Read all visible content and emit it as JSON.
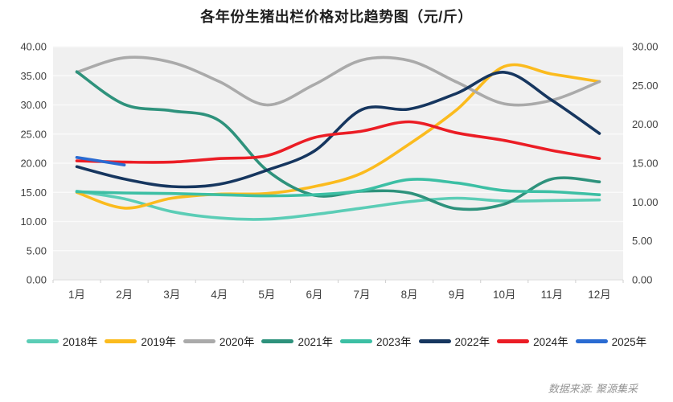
{
  "title": "各年份生猪出栏价格对比趋势图（元/斤）",
  "footer": {
    "source_label": "数据来源: 聚源集采"
  },
  "chart_data": {
    "type": "line",
    "title": "各年份生猪出栏价格对比趋势图（元/斤）",
    "categories": [
      "1月",
      "2月",
      "3月",
      "4月",
      "5月",
      "6月",
      "7月",
      "8月",
      "9月",
      "10月",
      "11月",
      "12月"
    ],
    "left_axis": {
      "min": 0,
      "max": 40,
      "step": 5,
      "labels": [
        "40.00",
        "35.00",
        "30.00",
        "25.00",
        "20.00",
        "15.00",
        "10.00",
        "5.00",
        "0.00"
      ]
    },
    "right_axis": {
      "min": 0,
      "max": 30,
      "step": 5,
      "labels": [
        "30.00",
        "25.00",
        "20.00",
        "15.00",
        "10.00",
        "5.00",
        "0.00"
      ]
    },
    "grid": true,
    "legend_position": "bottom",
    "plot_background": "#f0f0f0",
    "gridline_color": "#fafafa",
    "series": [
      {
        "name": "2018年",
        "color": "#5BCDB6",
        "values": [
          15.2,
          13.9,
          11.7,
          10.6,
          10.4,
          11.2,
          12.3,
          13.4,
          14.0,
          13.5,
          13.6,
          13.7
        ]
      },
      {
        "name": "2019年",
        "color": "#FBBB1E",
        "values": [
          15.0,
          12.3,
          14.0,
          14.7,
          14.8,
          16.0,
          18.3,
          23.3,
          29.2,
          36.6,
          35.3,
          34.0
        ]
      },
      {
        "name": "2020年",
        "color": "#AAAAAA",
        "values": [
          35.6,
          38.1,
          37.3,
          34.0,
          30.0,
          33.5,
          37.7,
          37.6,
          33.9,
          30.2,
          30.8,
          34.0
        ]
      },
      {
        "name": "2021年",
        "color": "#2E927C",
        "values": [
          35.7,
          30.1,
          29.0,
          27.3,
          18.8,
          14.5,
          15.2,
          14.9,
          12.2,
          13.0,
          17.3,
          16.8
        ]
      },
      {
        "name": "2023年",
        "color": "#3CBFA4",
        "values": [
          15.1,
          14.9,
          14.8,
          14.6,
          14.4,
          14.6,
          15.3,
          17.2,
          16.6,
          15.3,
          15.1,
          14.6
        ]
      },
      {
        "name": "2022年",
        "color": "#16365F",
        "values": [
          19.4,
          17.3,
          16.0,
          16.4,
          18.8,
          22.1,
          29.2,
          29.3,
          32.0,
          35.6,
          30.8,
          25.1
        ]
      },
      {
        "name": "2024年",
        "color": "#EB1D25",
        "values": [
          20.4,
          20.2,
          20.2,
          20.8,
          21.3,
          24.4,
          25.5,
          27.1,
          25.2,
          23.9,
          22.2,
          20.8
        ]
      },
      {
        "name": "2025年",
        "color": "#2A6BD2",
        "values": [
          21.0,
          19.7
        ]
      }
    ]
  }
}
